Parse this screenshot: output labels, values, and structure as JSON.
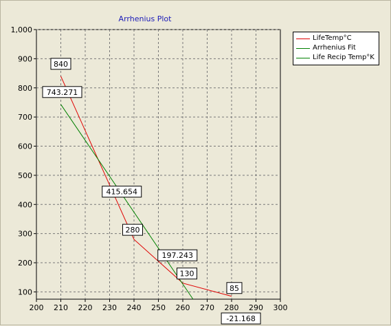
{
  "chart_data": {
    "type": "line",
    "title": "Arrhenius Plot",
    "xlabel": "",
    "ylabel": "",
    "xlim": [
      200,
      300
    ],
    "ylim": [
      75,
      1000
    ],
    "x_ticks": [
      200,
      210,
      220,
      230,
      240,
      250,
      260,
      270,
      280,
      290,
      300
    ],
    "y_ticks": [
      100,
      200,
      300,
      400,
      500,
      600,
      700,
      800,
      900,
      1000
    ],
    "y_tick_labels": [
      "100",
      "200",
      "300",
      "400",
      "500",
      "600",
      "700",
      "800",
      "900",
      "1,000"
    ],
    "grid": true,
    "legend_position": "top-right",
    "series": [
      {
        "name": "LifeTemp°C",
        "color": "#e00000",
        "points": [
          [
            210,
            840
          ],
          [
            240,
            280
          ],
          [
            260,
            130
          ],
          [
            280,
            85
          ]
        ],
        "data_labels": [
          "840",
          "280",
          "130",
          "85"
        ]
      },
      {
        "name": "Arrhenius Fit",
        "color": "#008000",
        "points": [
          [
            210,
            743.271
          ],
          [
            235,
            415.654
          ],
          [
            255,
            197.243
          ],
          [
            272,
            -21.168
          ]
        ],
        "data_labels": [
          "743.271",
          "415.654",
          "197.243",
          "-21.168"
        ]
      },
      {
        "name": "Life Recip Temp°K",
        "color": "#008000",
        "points": []
      }
    ]
  }
}
